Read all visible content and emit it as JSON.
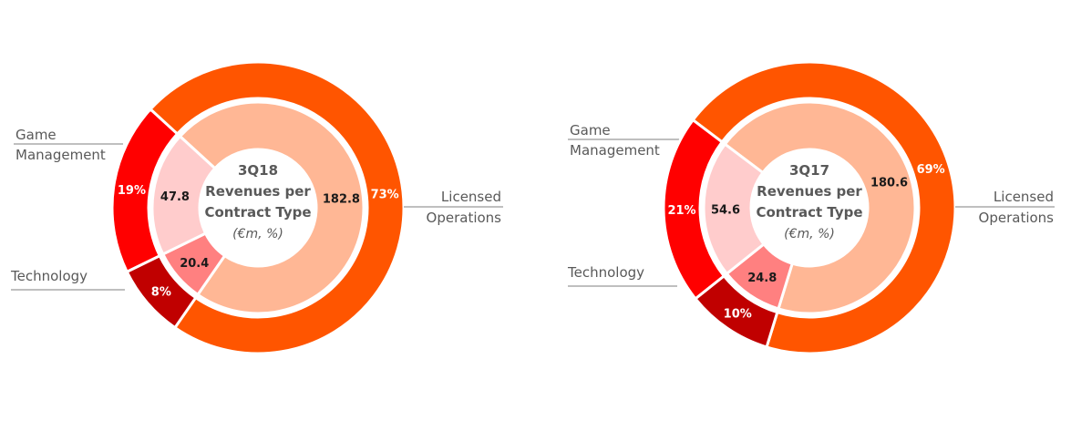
{
  "chart_data": [
    {
      "type": "pie",
      "title": [
        "3Q18",
        "Revenues per",
        "Contract Type"
      ],
      "unit_note": "(€m, %)",
      "categories": [
        "Licensed Operations",
        "Game Management",
        "Technology"
      ],
      "category_display": [
        [
          "Licensed",
          "Operations"
        ],
        [
          "Game",
          "Management"
        ],
        [
          "Technology"
        ]
      ],
      "values": [
        182.8,
        20.4,
        47.8
      ],
      "value_labels": [
        "182.8",
        "20.4",
        "47.8"
      ],
      "percent_labels": [
        "73%",
        "8%",
        "19%"
      ],
      "colors_outer": [
        "#ff5500",
        "#c00000",
        "#ff0000"
      ],
      "colors_inner": [
        "#ffb795",
        "#ff8080",
        "#ffcccc"
      ]
    },
    {
      "type": "pie",
      "title": [
        "3Q17",
        "Revenues per",
        "Contract Type"
      ],
      "unit_note": "(€m, %)",
      "categories": [
        "Licensed Operations",
        "Game Management",
        "Technology"
      ],
      "category_display": [
        [
          "Licensed",
          "Operations"
        ],
        [
          "Game",
          "Management"
        ],
        [
          "Technology"
        ]
      ],
      "values": [
        180.6,
        24.8,
        54.6
      ],
      "value_labels": [
        "180.6",
        "24.8",
        "54.6"
      ],
      "percent_labels": [
        "69%",
        "10%",
        "21%"
      ],
      "colors_outer": [
        "#ff5500",
        "#c00000",
        "#ff0000"
      ],
      "colors_inner": [
        "#ffb795",
        "#ff8080",
        "#ffcccc"
      ]
    }
  ]
}
